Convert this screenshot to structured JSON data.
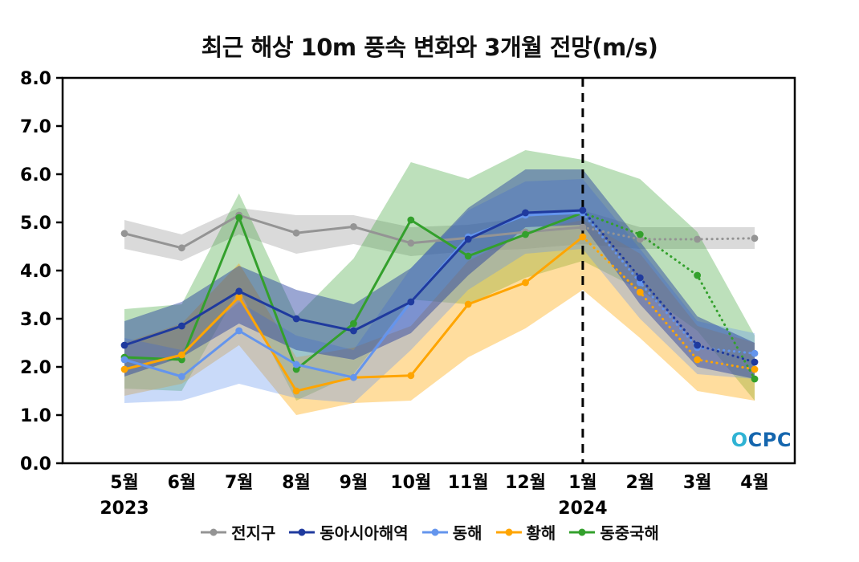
{
  "watermark": "OCPC",
  "chart_data": {
    "type": "line",
    "title": "최근 해상 10m 풍속 변화와 3개월 전망(m/s)",
    "x_labels": [
      "5월",
      "6월",
      "7월",
      "8월",
      "9월",
      "10월",
      "11월",
      "12월",
      "1월",
      "2월",
      "3월",
      "4월"
    ],
    "year_annotations": [
      {
        "x_index": 0,
        "label": "2023"
      },
      {
        "x_index": 8,
        "label": "2024"
      }
    ],
    "ylim": [
      0,
      8
    ],
    "y_ticks": [
      0,
      1,
      2,
      3,
      4,
      5,
      6,
      7,
      8
    ],
    "y_tick_labels": [
      "0.0",
      "1.0",
      "2.0",
      "3.0",
      "4.0",
      "5.0",
      "6.0",
      "7.0",
      "8.0"
    ],
    "grid": false,
    "legend_position": "bottom",
    "forecast_start_index": 8,
    "divider": {
      "x_index": 8,
      "style": "dashed",
      "color": "#000000"
    },
    "series": [
      {
        "name": "전지구",
        "color": "#949494",
        "band_opacity": 0.35,
        "values": [
          4.77,
          4.47,
          5.15,
          4.78,
          4.91,
          4.57,
          4.68,
          4.8,
          4.9,
          4.65,
          4.65,
          4.67
        ],
        "band_low": [
          4.45,
          4.2,
          4.75,
          4.35,
          4.55,
          4.3,
          4.4,
          4.45,
          4.55,
          4.45,
          4.45,
          4.45
        ],
        "band_high": [
          5.05,
          4.75,
          5.3,
          5.15,
          5.15,
          4.9,
          4.95,
          5.1,
          5.25,
          4.9,
          4.9,
          4.9
        ]
      },
      {
        "name": "동아시아해역",
        "color": "#1f3a9e",
        "band_opacity": 0.45,
        "values": [
          2.45,
          2.85,
          3.57,
          3.0,
          2.75,
          3.35,
          4.65,
          5.2,
          5.25,
          3.85,
          2.45,
          2.1
        ],
        "band_low": [
          1.8,
          2.2,
          2.9,
          2.35,
          2.15,
          2.7,
          3.9,
          4.9,
          4.95,
          3.3,
          2.0,
          1.75
        ],
        "band_high": [
          2.95,
          3.35,
          4.1,
          3.6,
          3.3,
          4.05,
          5.3,
          6.1,
          6.1,
          4.6,
          3.05,
          2.5
        ]
      },
      {
        "name": "동해",
        "color": "#6495ed",
        "band_opacity": 0.35,
        "values": [
          2.15,
          1.8,
          2.75,
          2.05,
          1.78,
          3.35,
          4.7,
          5.15,
          5.2,
          3.75,
          2.4,
          2.28
        ],
        "band_low": [
          1.25,
          1.3,
          1.65,
          1.35,
          1.25,
          2.35,
          3.6,
          4.35,
          4.45,
          3.0,
          1.85,
          1.75
        ],
        "band_high": [
          2.6,
          2.35,
          3.35,
          2.65,
          2.35,
          4.05,
          5.25,
          5.85,
          5.9,
          4.45,
          2.95,
          2.7
        ]
      },
      {
        "name": "황해",
        "color": "#ffa500",
        "band_opacity": 0.38,
        "values": [
          1.95,
          2.25,
          3.45,
          1.5,
          1.78,
          1.82,
          3.3,
          3.75,
          4.7,
          3.55,
          2.15,
          1.95
        ],
        "band_low": [
          1.4,
          1.65,
          2.45,
          1.0,
          1.25,
          1.3,
          2.2,
          2.8,
          3.6,
          2.6,
          1.5,
          1.3
        ],
        "band_high": [
          2.5,
          2.9,
          4.15,
          2.2,
          2.4,
          2.85,
          4.2,
          4.8,
          5.05,
          4.35,
          2.85,
          2.5
        ]
      },
      {
        "name": "동중국해",
        "color": "#33a02c",
        "band_opacity": 0.32,
        "values": [
          2.2,
          2.15,
          5.1,
          1.95,
          2.9,
          5.05,
          4.3,
          4.75,
          5.2,
          4.75,
          3.9,
          1.75
        ],
        "band_low": [
          1.55,
          1.5,
          3.6,
          1.3,
          1.85,
          3.4,
          3.3,
          3.85,
          4.2,
          3.6,
          2.75,
          1.3
        ],
        "band_high": [
          3.2,
          3.3,
          5.6,
          3.05,
          4.25,
          6.25,
          5.9,
          6.5,
          6.3,
          5.9,
          4.8,
          2.65
        ]
      }
    ]
  }
}
